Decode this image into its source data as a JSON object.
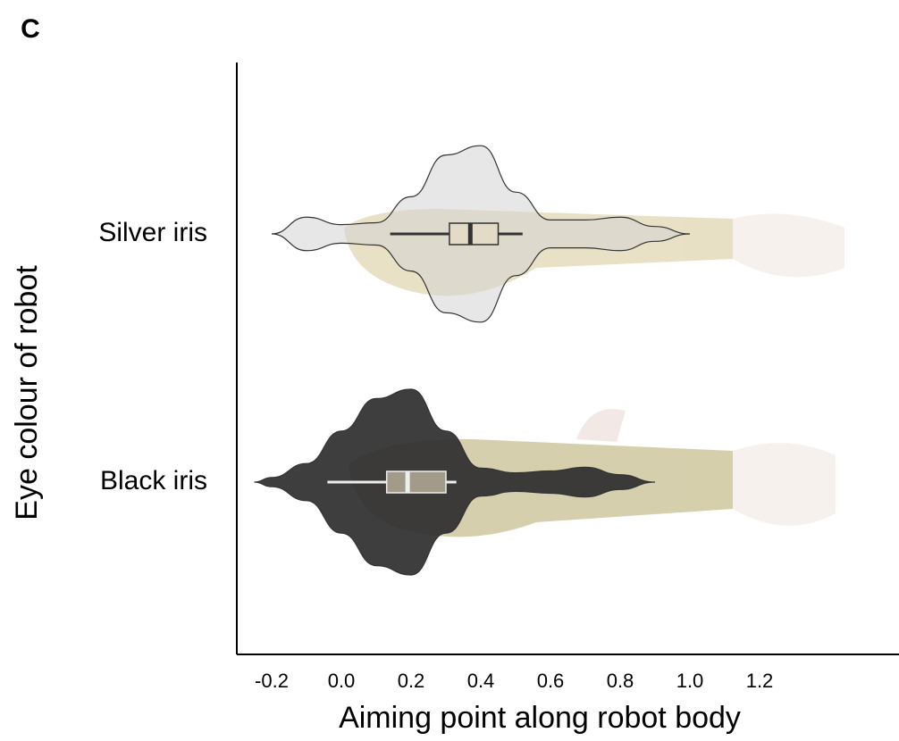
{
  "chart_data": {
    "type": "violin",
    "panel_label": "C",
    "xlabel": "Aiming point along robot body",
    "ylabel": "Eye colour of robot",
    "categories": [
      "Silver iris",
      "Black iris"
    ],
    "xlim": [
      -0.3,
      1.6
    ],
    "xticks": [
      -0.2,
      {
        "value": 0,
        "label": "0.0"
      },
      0.2,
      0.4,
      0.6,
      0.8,
      {
        "value": 1,
        "label": "1.0"
      },
      1.2
    ],
    "grid": false,
    "violins": [
      {
        "color": "#d4d4d4",
        "box_color": "#333333",
        "x": [
          -0.2,
          -0.1,
          0,
          0.1,
          0.2,
          0.3,
          0.4,
          0.5,
          0.6,
          0.7,
          0.8,
          0.9,
          1.0
        ],
        "density": [
          0,
          0.18,
          0.1,
          0.12,
          0.4,
          0.85,
          0.95,
          0.45,
          0.15,
          0.15,
          0.18,
          0.08,
          0
        ],
        "box": {
          "whisker_low": 0.14,
          "q1": 0.31,
          "median": 0.37,
          "q3": 0.45,
          "whisker_high": 0.52
        }
      },
      {
        "color": "#2e2e2e",
        "box_color": "#eeeeee",
        "x": [
          -0.25,
          -0.2,
          -0.1,
          0,
          0.1,
          0.2,
          0.3,
          0.4,
          0.5,
          0.6,
          0.7,
          0.8,
          0.9
        ],
        "density": [
          0,
          0.05,
          0.2,
          0.55,
          0.9,
          1.0,
          0.55,
          0.15,
          0.1,
          0.12,
          0.16,
          0.08,
          0
        ],
        "box": {
          "whisker_low": -0.04,
          "q1": 0.13,
          "median": 0.19,
          "q3": 0.3,
          "whisker_high": 0.33
        }
      }
    ]
  }
}
